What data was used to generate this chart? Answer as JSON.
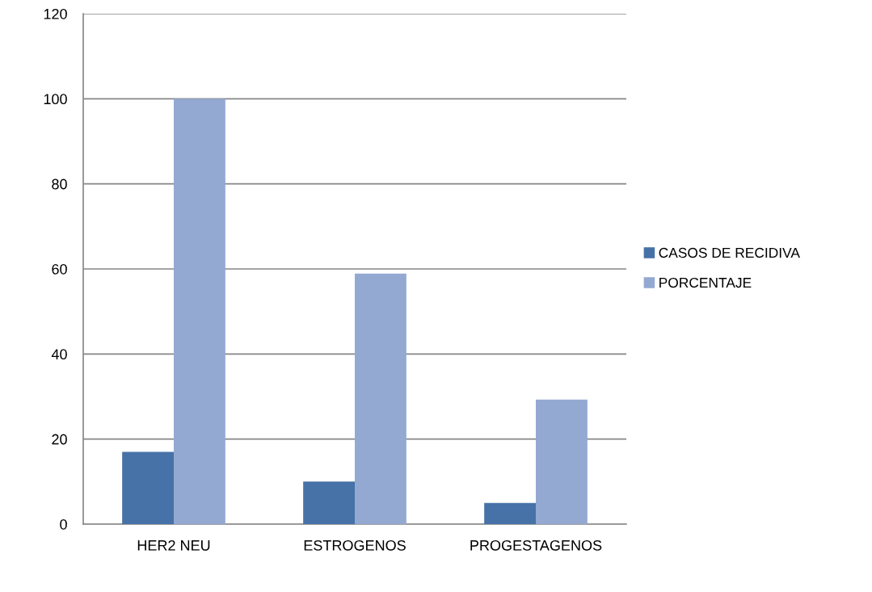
{
  "chart_data": {
    "type": "bar",
    "categories": [
      "HER2 NEU",
      "ESTROGENOS",
      "PROGESTAGENOS"
    ],
    "series": [
      {
        "name": "CASOS DE RECIDIVA",
        "color": "#4672a7",
        "values": [
          17,
          10,
          5
        ]
      },
      {
        "name": "PORCENTAJE",
        "color": "#94a9d1",
        "values": [
          100,
          58.9,
          29.3
        ]
      }
    ],
    "ylim": [
      0,
      120
    ],
    "yticks": [
      0,
      20,
      40,
      60,
      80,
      100,
      120
    ],
    "grid": "y",
    "legend": "right"
  }
}
